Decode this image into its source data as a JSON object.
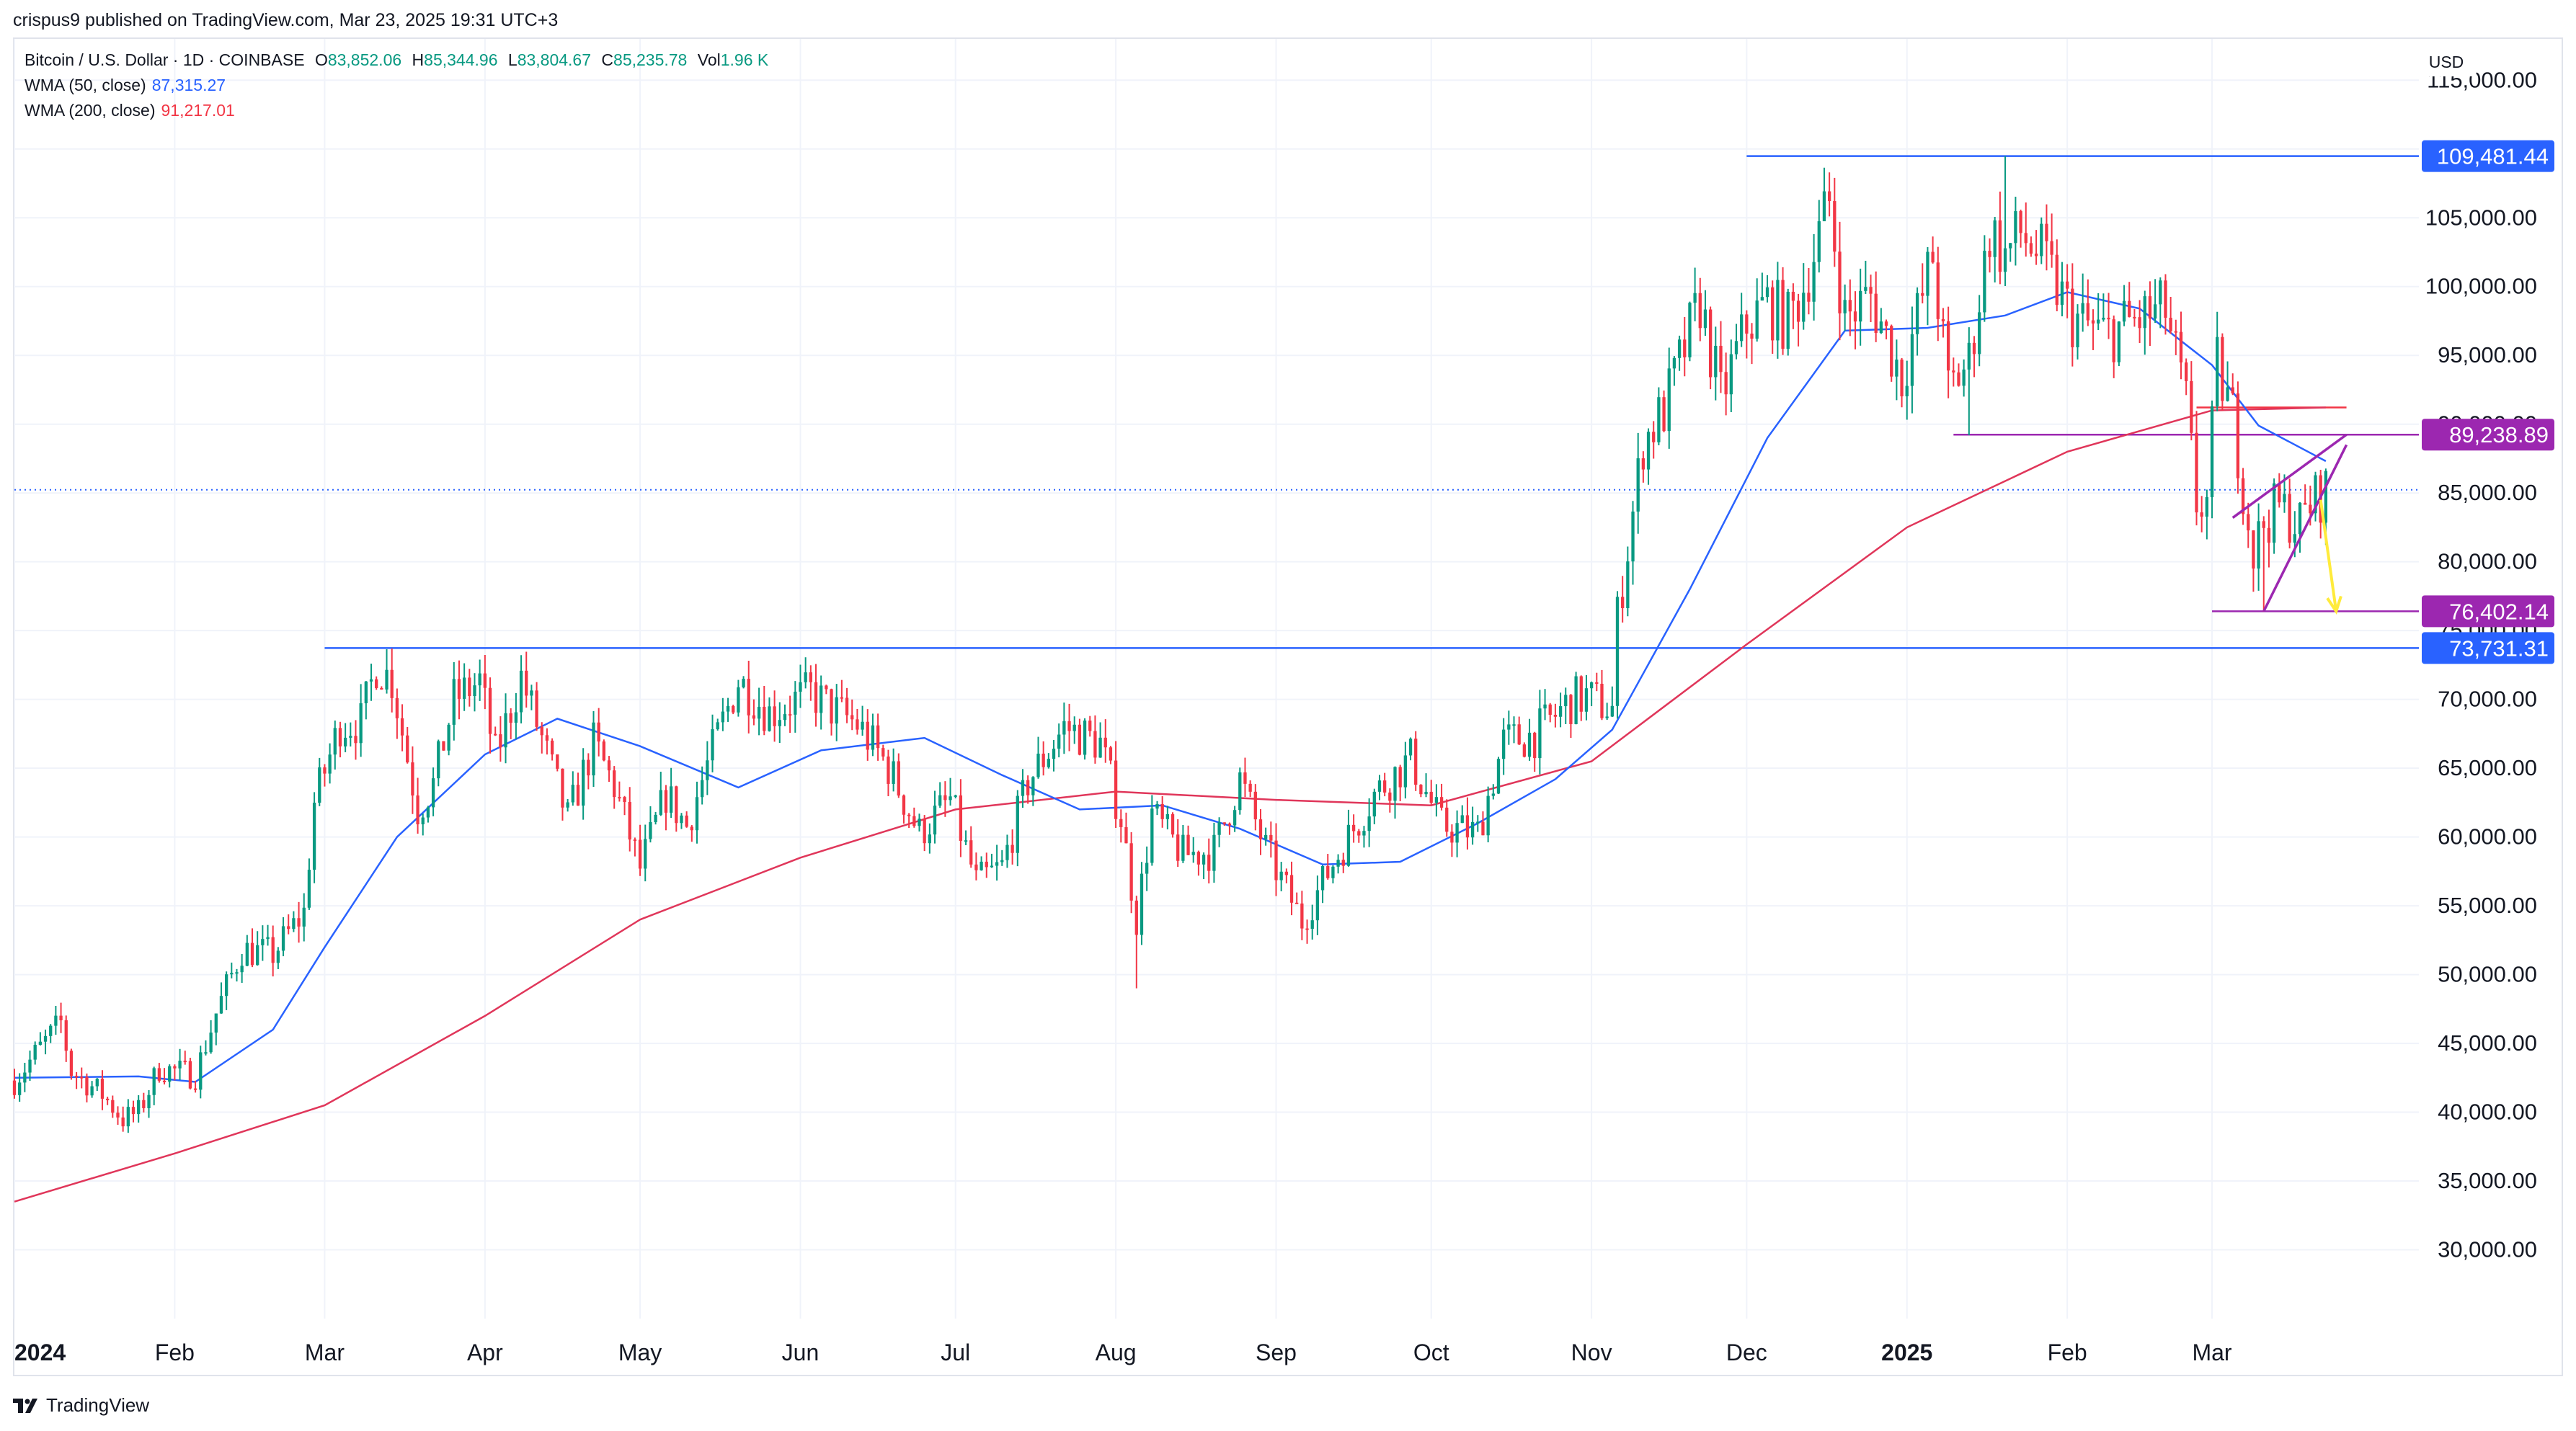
{
  "publisher": "crispus9 published on TradingView.com, Mar 23, 2025 19:31 UTC+3",
  "brand": "TradingView",
  "currency": "USD",
  "legend": {
    "symbol": "Bitcoin / U.S. Dollar · 1D · COINBASE",
    "open_label": "O",
    "open": "83,852.06",
    "high_label": "H",
    "high": "85,344.96",
    "low_label": "L",
    "low": "83,804.67",
    "close_label": "C",
    "close": "85,235.78",
    "vol_label": "Vol",
    "vol": "1.96 K",
    "wma50_label": "WMA (50, close)",
    "wma50_value": "87,315.27",
    "wma200_label": "WMA (200, close)",
    "wma200_value": "91,217.01"
  },
  "colors": {
    "up": "#089981",
    "down": "#f23645",
    "wma50": "#2962ff",
    "wma200": "#e0365a",
    "hline_blue": "#2962ff",
    "hline_purple": "#9c27b0",
    "pattern": "#9c27b0",
    "arrow": "#ffeb3b",
    "grid": "#f0f3fa"
  },
  "chart_data": {
    "type": "candlestick",
    "title": "Bitcoin / U.S. Dollar · 1D · COINBASE",
    "ylim": [
      25000,
      118000
    ],
    "y_ticks": [
      30000,
      35000,
      40000,
      45000,
      50000,
      55000,
      60000,
      65000,
      70000,
      75000,
      80000,
      85000,
      90000,
      95000,
      100000,
      105000,
      110000,
      115000
    ],
    "y_tick_labels": [
      "30,000.00",
      "35,000.00",
      "40,000.00",
      "45,000.00",
      "50,000.00",
      "55,000.00",
      "60,000.00",
      "65,000.00",
      "70,000.00",
      "75,000.00",
      "80,000.00",
      "85,000.00",
      "90,000.00",
      "95,000.00",
      "100,000.00",
      "105,000.00",
      "110,000.00",
      "115,000.00"
    ],
    "x_range": [
      "2024-01-01",
      "2025-04-10"
    ],
    "x_ticks": [
      {
        "label": "2024",
        "date": "2024-01-01",
        "bold": true
      },
      {
        "label": "Feb",
        "date": "2024-02-01"
      },
      {
        "label": "Mar",
        "date": "2024-03-01"
      },
      {
        "label": "Apr",
        "date": "2024-04-01"
      },
      {
        "label": "May",
        "date": "2024-05-01"
      },
      {
        "label": "Jun",
        "date": "2024-06-01"
      },
      {
        "label": "Jul",
        "date": "2024-07-01"
      },
      {
        "label": "Aug",
        "date": "2024-08-01"
      },
      {
        "label": "Sep",
        "date": "2024-09-01"
      },
      {
        "label": "Oct",
        "date": "2024-10-01"
      },
      {
        "label": "Nov",
        "date": "2024-11-01"
      },
      {
        "label": "Dec",
        "date": "2024-12-01"
      },
      {
        "label": "2025",
        "date": "2025-01-01",
        "bold": true
      },
      {
        "label": "Feb",
        "date": "2025-02-01"
      },
      {
        "label": "Mar",
        "date": "2025-03-01"
      }
    ],
    "close_path": [
      [
        "2024-01-01",
        42300
      ],
      [
        "2024-01-05",
        44200
      ],
      [
        "2024-01-10",
        46500
      ],
      [
        "2024-01-12",
        43000
      ],
      [
        "2024-01-18",
        41300
      ],
      [
        "2024-01-22",
        39500
      ],
      [
        "2024-01-25",
        40000
      ],
      [
        "2024-01-29",
        43200
      ],
      [
        "2024-02-05",
        42700
      ],
      [
        "2024-02-09",
        47200
      ],
      [
        "2024-02-14",
        51800
      ],
      [
        "2024-02-20",
        51500
      ],
      [
        "2024-02-26",
        54500
      ],
      [
        "2024-02-28",
        62500
      ],
      [
        "2024-03-04",
        68200
      ],
      [
        "2024-03-08",
        68300
      ],
      [
        "2024-03-11",
        72500
      ],
      [
        "2024-03-14",
        71400
      ],
      [
        "2024-03-19",
        62000
      ],
      [
        "2024-03-22",
        63800
      ],
      [
        "2024-03-26",
        70000
      ],
      [
        "2024-03-31",
        71300
      ],
      [
        "2024-04-03",
        65900
      ],
      [
        "2024-04-08",
        71600
      ],
      [
        "2024-04-12",
        67100
      ],
      [
        "2024-04-17",
        61300
      ],
      [
        "2024-04-22",
        66800
      ],
      [
        "2024-04-26",
        63700
      ],
      [
        "2024-05-01",
        57700
      ],
      [
        "2024-05-06",
        63100
      ],
      [
        "2024-05-10",
        60800
      ],
      [
        "2024-05-15",
        66300
      ],
      [
        "2024-05-20",
        71400
      ],
      [
        "2024-05-26",
        69000
      ],
      [
        "2024-06-03",
        70500
      ],
      [
        "2024-06-07",
        69300
      ],
      [
        "2024-06-12",
        68200
      ],
      [
        "2024-06-18",
        65100
      ],
      [
        "2024-06-24",
        60300
      ],
      [
        "2024-06-30",
        62700
      ],
      [
        "2024-07-05",
        56700
      ],
      [
        "2024-07-10",
        57800
      ],
      [
        "2024-07-15",
        64000
      ],
      [
        "2024-07-22",
        68000
      ],
      [
        "2024-07-29",
        66800
      ],
      [
        "2024-08-02",
        61400
      ],
      [
        "2024-08-05",
        54000
      ],
      [
        "2024-08-08",
        61700
      ],
      [
        "2024-08-14",
        58700
      ],
      [
        "2024-08-20",
        59000
      ],
      [
        "2024-08-25",
        64200
      ],
      [
        "2024-08-30",
        59100
      ],
      [
        "2024-09-06",
        53900
      ],
      [
        "2024-09-12",
        58100
      ],
      [
        "2024-09-20",
        63100
      ],
      [
        "2024-09-27",
        65700
      ],
      [
        "2024-10-03",
        60800
      ],
      [
        "2024-10-10",
        60300
      ],
      [
        "2024-10-15",
        66900
      ],
      [
        "2024-10-21",
        67400
      ],
      [
        "2024-10-28",
        69900
      ],
      [
        "2024-10-31",
        70200
      ],
      [
        "2024-11-05",
        69300
      ],
      [
        "2024-11-06",
        75900
      ],
      [
        "2024-11-11",
        88700
      ],
      [
        "2024-11-15",
        91000
      ],
      [
        "2024-11-22",
        98900
      ],
      [
        "2024-11-26",
        91900
      ],
      [
        "2024-12-01",
        97200
      ],
      [
        "2024-12-05",
        98800
      ],
      [
        "2024-12-09",
        97400
      ],
      [
        "2024-12-12",
        100000
      ],
      [
        "2024-12-17",
        106100
      ],
      [
        "2024-12-20",
        97700
      ],
      [
        "2024-12-25",
        99300
      ],
      [
        "2024-12-31",
        93400
      ],
      [
        "2025-01-06",
        102200
      ],
      [
        "2025-01-09",
        92500
      ],
      [
        "2025-01-13",
        94500
      ],
      [
        "2025-01-17",
        104100
      ],
      [
        "2025-01-20",
        102300
      ],
      [
        "2025-01-23",
        103900
      ],
      [
        "2025-01-27",
        102100
      ],
      [
        "2025-02-02",
        97700
      ],
      [
        "2025-02-08",
        96500
      ],
      [
        "2025-02-14",
        97500
      ],
      [
        "2025-02-20",
        98300
      ],
      [
        "2025-02-24",
        91400
      ],
      [
        "2025-02-26",
        84200
      ],
      [
        "2025-02-28",
        84300
      ],
      [
        "2025-03-02",
        94200
      ],
      [
        "2025-03-05",
        90600
      ],
      [
        "2025-03-09",
        80600
      ],
      [
        "2025-03-11",
        82900
      ],
      [
        "2025-03-14",
        84000
      ],
      [
        "2025-03-18",
        82700
      ],
      [
        "2025-03-20",
        84200
      ],
      [
        "2025-03-23",
        85235
      ]
    ],
    "wma50": [
      [
        "2024-01-01",
        42500
      ],
      [
        "2024-01-25",
        42600
      ],
      [
        "2024-02-05",
        42200
      ],
      [
        "2024-02-20",
        46000
      ],
      [
        "2024-03-01",
        52000
      ],
      [
        "2024-03-15",
        60000
      ],
      [
        "2024-04-01",
        66000
      ],
      [
        "2024-04-15",
        68600
      ],
      [
        "2024-05-01",
        66600
      ],
      [
        "2024-05-20",
        63600
      ],
      [
        "2024-06-05",
        66300
      ],
      [
        "2024-06-25",
        67200
      ],
      [
        "2024-07-10",
        64500
      ],
      [
        "2024-07-25",
        62000
      ],
      [
        "2024-08-10",
        62300
      ],
      [
        "2024-08-25",
        60600
      ],
      [
        "2024-09-10",
        58000
      ],
      [
        "2024-09-25",
        58200
      ],
      [
        "2024-10-10",
        61000
      ],
      [
        "2024-10-25",
        64200
      ],
      [
        "2024-11-05",
        67800
      ],
      [
        "2024-11-20",
        78000
      ],
      [
        "2024-12-05",
        89000
      ],
      [
        "2024-12-20",
        96800
      ],
      [
        "2025-01-05",
        97000
      ],
      [
        "2025-01-20",
        97900
      ],
      [
        "2025-02-01",
        99600
      ],
      [
        "2025-02-15",
        98400
      ],
      [
        "2025-03-01",
        94300
      ],
      [
        "2025-03-10",
        89900
      ],
      [
        "2025-03-23",
        87315
      ]
    ],
    "wma200": [
      [
        "2024-01-01",
        33500
      ],
      [
        "2024-02-01",
        37000
      ],
      [
        "2024-03-01",
        40500
      ],
      [
        "2024-04-01",
        47000
      ],
      [
        "2024-05-01",
        54000
      ],
      [
        "2024-06-01",
        58500
      ],
      [
        "2024-07-01",
        62000
      ],
      [
        "2024-08-01",
        63300
      ],
      [
        "2024-09-01",
        62700
      ],
      [
        "2024-10-01",
        62300
      ],
      [
        "2024-11-01",
        65500
      ],
      [
        "2024-12-01",
        74000
      ],
      [
        "2025-01-01",
        82500
      ],
      [
        "2025-02-01",
        88000
      ],
      [
        "2025-03-01",
        91000
      ],
      [
        "2025-03-23",
        91217
      ]
    ],
    "lows": [
      [
        "2024-01-23",
        38500
      ],
      [
        "2024-08-05",
        49000
      ],
      [
        "2024-09-06",
        52500
      ],
      [
        "2025-01-13",
        89200
      ],
      [
        "2025-03-11",
        76402
      ]
    ],
    "highs": [
      [
        "2024-03-14",
        73700
      ],
      [
        "2024-12-17",
        108300
      ],
      [
        "2025-01-20",
        109481
      ]
    ],
    "horizontal_lines": [
      {
        "from": "2024-03-01",
        "value": 73731.31,
        "label": "73,731.31",
        "color": "blue"
      },
      {
        "from": "2024-12-01",
        "value": 109481.44,
        "label": "109,481.44",
        "color": "blue"
      },
      {
        "from": "2025-01-10",
        "value": 89238.89,
        "label": "89,238.89",
        "color": "purple"
      },
      {
        "from": "2025-03-01",
        "value": 76402.14,
        "label": "76,402.14",
        "color": "purple"
      }
    ],
    "red_level": {
      "from": "2025-02-26",
      "to": "2025-03-27",
      "value": 91217
    },
    "last_price_line": {
      "value": 85235.78
    },
    "rising_wedge": {
      "upper": [
        [
          "2025-03-05",
          83200
        ],
        [
          "2025-03-27",
          89238
        ]
      ],
      "lower": [
        [
          "2025-03-11",
          76402
        ],
        [
          "2025-03-27",
          88500
        ]
      ]
    },
    "arrow": {
      "from": [
        "2025-03-22",
        84500
      ],
      "to": [
        "2025-03-25",
        76402
      ]
    },
    "price_labels": [
      {
        "value": 109481.44,
        "text": "109,481.44",
        "color": "blue"
      },
      {
        "value": 89238.89,
        "text": "89,238.89",
        "color": "purple"
      },
      {
        "value": 76402.14,
        "text": "76,402.14",
        "color": "purple"
      },
      {
        "value": 73731.31,
        "text": "73,731.31",
        "color": "blue"
      }
    ]
  }
}
